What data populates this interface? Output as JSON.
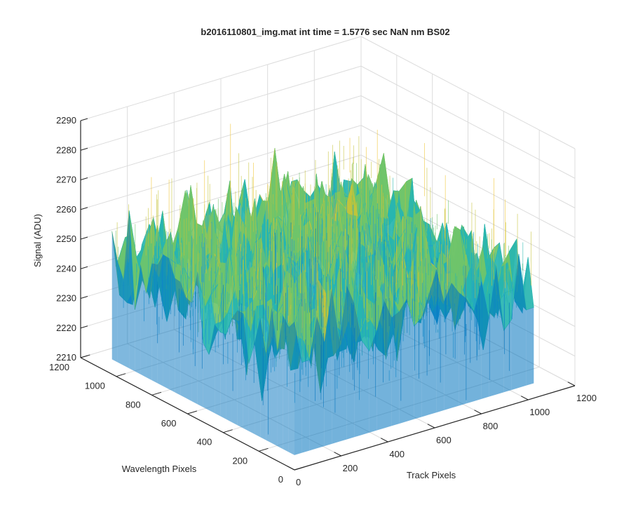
{
  "chart_data": {
    "type": "surface",
    "title": "b2016110801_img.mat int time = 1.5776 sec  NaN nm BS02",
    "xlabel": "Track Pixels",
    "ylabel": "Wavelength Pixels",
    "zlabel": "Signal (ADU)",
    "xlim": [
      0,
      1200
    ],
    "ylim": [
      0,
      1200
    ],
    "zlim": [
      2210,
      2290
    ],
    "x_ticks": [
      "0",
      "200",
      "400",
      "600",
      "800",
      "1000",
      "1200"
    ],
    "y_ticks": [
      "0",
      "200",
      "400",
      "600",
      "800",
      "1000",
      "1200"
    ],
    "z_ticks": [
      "2210",
      "2220",
      "2230",
      "2240",
      "2250",
      "2260",
      "2270",
      "2280",
      "2290"
    ],
    "data_extent": {
      "x_max": 1024,
      "y_max": 1024
    },
    "signal_mean": 2249,
    "signal_range": [
      2215,
      2285
    ],
    "grid": true,
    "colormap": [
      "#0072bd",
      "#1f9bd3",
      "#27b5b0",
      "#6fc46a",
      "#c5c33a",
      "#f0c431"
    ]
  }
}
